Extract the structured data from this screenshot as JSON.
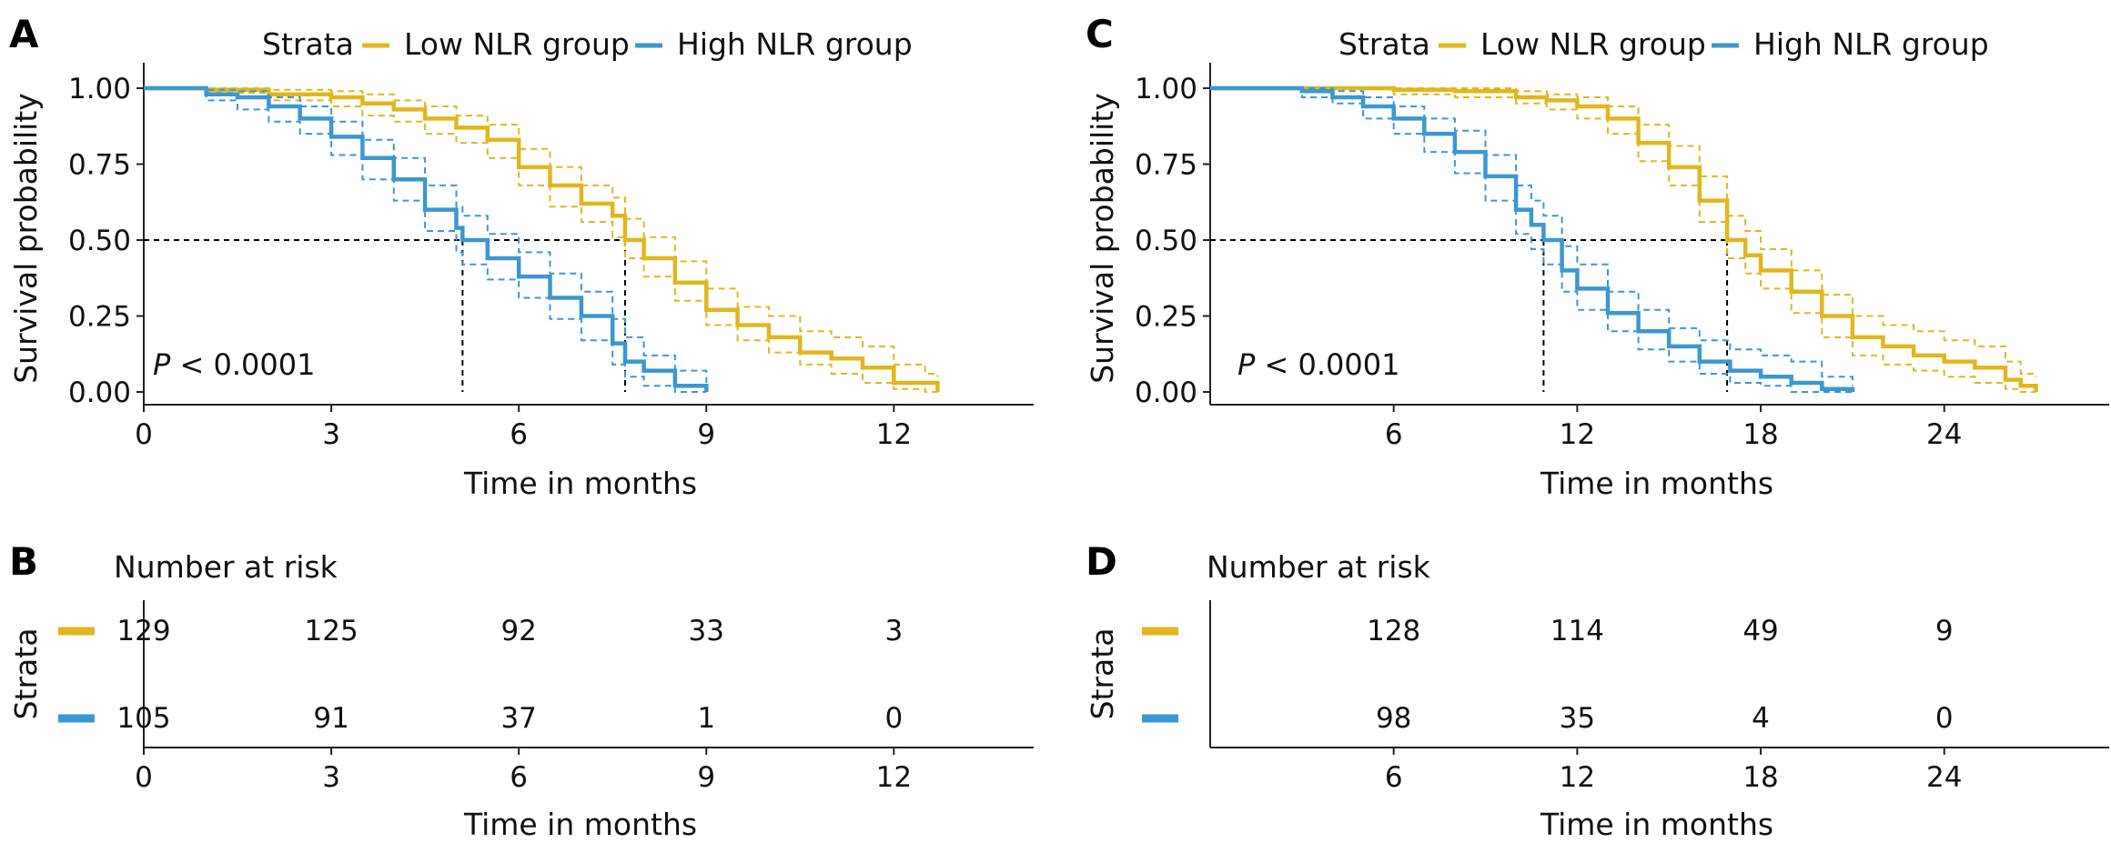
{
  "colors": {
    "low": "#E1B61D",
    "high": "#3B97CF",
    "axis": "#222222",
    "ref": "#000000"
  },
  "legend": {
    "title": "Strata",
    "low_label": "Low NLR group",
    "high_label": "High NLR group"
  },
  "panels": {
    "A": {
      "letter": "A",
      "p_italic": "P",
      "p_rest": " < 0.0001",
      "ylabel": "Survival probability",
      "xlabel": "Time in months"
    },
    "B": {
      "letter": "B",
      "title": "Number at risk",
      "ylabel": "Strata",
      "xlabel": "Time in months"
    },
    "C": {
      "letter": "C",
      "p_italic": "P",
      "p_rest": " < 0.0001",
      "ylabel": "Survival probability",
      "xlabel": "Time in months"
    },
    "D": {
      "letter": "D",
      "title": "Number at risk",
      "ylabel": "Strata",
      "xlabel": "Time in months"
    }
  },
  "chart_data": [
    {
      "panel": "A",
      "type": "line",
      "title": "",
      "xlabel": "Time in months",
      "ylabel": "Survival probability",
      "xlim": [
        0,
        13.8
      ],
      "ylim": [
        0,
        1.0
      ],
      "xticks": [
        0,
        3,
        6,
        9,
        12
      ],
      "yticks": [
        0.0,
        0.25,
        0.5,
        0.75,
        1.0
      ],
      "ytick_labels": [
        "0.00",
        "0.25",
        "0.50",
        "0.75",
        "1.00"
      ],
      "grid": false,
      "legend_position": "top",
      "median_survival": {
        "High NLR group": 5.1,
        "Low NLR group": 7.7
      },
      "series": [
        {
          "name": "Low NLR group",
          "x": [
            0,
            1.0,
            2.0,
            3.0,
            3.5,
            4.0,
            4.5,
            5.0,
            5.5,
            6.0,
            6.5,
            7.0,
            7.5,
            7.7,
            8.0,
            8.5,
            9.0,
            9.5,
            10.0,
            10.5,
            11.0,
            11.5,
            12.0,
            12.5,
            12.7
          ],
          "y": [
            1.0,
            0.995,
            0.98,
            0.97,
            0.95,
            0.93,
            0.9,
            0.87,
            0.83,
            0.74,
            0.68,
            0.62,
            0.58,
            0.5,
            0.44,
            0.36,
            0.27,
            0.22,
            0.18,
            0.13,
            0.11,
            0.08,
            0.03,
            0.03,
            0.0
          ],
          "ci_upper": [
            1.0,
            1.0,
            0.995,
            0.99,
            0.98,
            0.96,
            0.94,
            0.91,
            0.88,
            0.8,
            0.74,
            0.68,
            0.64,
            0.57,
            0.51,
            0.43,
            0.34,
            0.28,
            0.25,
            0.2,
            0.18,
            0.15,
            0.09,
            0.06,
            0.05
          ],
          "ci_lower": [
            1.0,
            0.985,
            0.96,
            0.94,
            0.91,
            0.89,
            0.85,
            0.82,
            0.77,
            0.68,
            0.61,
            0.56,
            0.51,
            0.44,
            0.38,
            0.3,
            0.22,
            0.17,
            0.13,
            0.09,
            0.06,
            0.03,
            0.01,
            0.0,
            0.0
          ]
        },
        {
          "name": "High NLR group",
          "x": [
            0,
            1.0,
            1.5,
            2.0,
            2.5,
            3.0,
            3.5,
            4.0,
            4.5,
            5.0,
            5.1,
            5.5,
            6.0,
            6.5,
            7.0,
            7.5,
            7.7,
            8.0,
            8.5,
            9.0
          ],
          "y": [
            1.0,
            0.98,
            0.97,
            0.94,
            0.9,
            0.84,
            0.77,
            0.7,
            0.6,
            0.54,
            0.5,
            0.44,
            0.38,
            0.31,
            0.25,
            0.16,
            0.1,
            0.07,
            0.02,
            0.0
          ],
          "ci_upper": [
            1.0,
            0.995,
            0.99,
            0.97,
            0.94,
            0.89,
            0.83,
            0.77,
            0.68,
            0.61,
            0.58,
            0.52,
            0.46,
            0.39,
            0.33,
            0.24,
            0.18,
            0.12,
            0.07,
            0.03
          ],
          "ci_lower": [
            1.0,
            0.96,
            0.93,
            0.89,
            0.85,
            0.78,
            0.7,
            0.63,
            0.53,
            0.46,
            0.42,
            0.37,
            0.31,
            0.24,
            0.17,
            0.09,
            0.05,
            0.02,
            0.0,
            0.0
          ]
        }
      ]
    },
    {
      "panel": "B",
      "type": "table",
      "title": "Number at risk",
      "xlabel": "Time in months",
      "ylabel": "Strata",
      "xlim": [
        0,
        13.8
      ],
      "x": [
        0,
        3,
        6,
        9,
        12
      ],
      "series": [
        {
          "name": "Low NLR group",
          "values": [
            129,
            125,
            92,
            33,
            3
          ]
        },
        {
          "name": "High NLR group",
          "values": [
            105,
            91,
            37,
            1,
            0
          ]
        }
      ]
    },
    {
      "panel": "C",
      "type": "line",
      "title": "",
      "xlabel": "Time in months",
      "ylabel": "Survival probability",
      "xlim": [
        0,
        28.5
      ],
      "ylim": [
        0,
        1.0
      ],
      "xticks": [
        6,
        12,
        18,
        24
      ],
      "yticks": [
        0.0,
        0.25,
        0.5,
        0.75,
        1.0
      ],
      "ytick_labels": [
        "0.00",
        "0.25",
        "0.50",
        "0.75",
        "1.00"
      ],
      "grid": false,
      "legend_position": "top",
      "median_survival": {
        "High NLR group": 10.9,
        "Low NLR group": 16.9
      },
      "series": [
        {
          "name": "Low NLR group",
          "x": [
            0,
            4.0,
            6.0,
            8.0,
            10.0,
            11.0,
            12.0,
            13.0,
            14.0,
            15.0,
            16.0,
            16.9,
            17.5,
            18.0,
            19.0,
            20.0,
            21.0,
            22.0,
            23.0,
            24.0,
            25.0,
            26.0,
            26.5,
            27.0
          ],
          "y": [
            1.0,
            1.0,
            0.995,
            0.99,
            0.97,
            0.96,
            0.94,
            0.9,
            0.82,
            0.74,
            0.63,
            0.5,
            0.45,
            0.4,
            0.33,
            0.25,
            0.18,
            0.15,
            0.12,
            0.1,
            0.08,
            0.04,
            0.02,
            0.0
          ],
          "ci_upper": [
            1.0,
            1.0,
            1.0,
            1.0,
            0.99,
            0.98,
            0.97,
            0.94,
            0.88,
            0.81,
            0.71,
            0.58,
            0.53,
            0.47,
            0.4,
            0.32,
            0.25,
            0.22,
            0.2,
            0.17,
            0.15,
            0.1,
            0.06,
            0.05
          ],
          "ci_lower": [
            1.0,
            1.0,
            0.98,
            0.97,
            0.95,
            0.93,
            0.9,
            0.85,
            0.76,
            0.68,
            0.56,
            0.44,
            0.39,
            0.34,
            0.26,
            0.18,
            0.12,
            0.09,
            0.07,
            0.05,
            0.03,
            0.01,
            0.0,
            0.0
          ]
        },
        {
          "name": "High NLR group",
          "x": [
            0,
            3.0,
            4.0,
            5.0,
            6.0,
            7.0,
            8.0,
            9.0,
            10.0,
            10.5,
            10.9,
            11.5,
            12.0,
            13.0,
            14.0,
            15.0,
            16.0,
            17.0,
            18.0,
            19.0,
            20.0,
            21.0
          ],
          "y": [
            1.0,
            0.99,
            0.97,
            0.94,
            0.9,
            0.85,
            0.79,
            0.71,
            0.6,
            0.55,
            0.5,
            0.4,
            0.34,
            0.26,
            0.2,
            0.15,
            0.1,
            0.07,
            0.05,
            0.03,
            0.01,
            0.0
          ],
          "ci_upper": [
            1.0,
            1.0,
            0.99,
            0.97,
            0.94,
            0.9,
            0.86,
            0.78,
            0.68,
            0.63,
            0.58,
            0.48,
            0.42,
            0.33,
            0.27,
            0.21,
            0.17,
            0.14,
            0.12,
            0.1,
            0.05,
            0.02
          ],
          "ci_lower": [
            1.0,
            0.97,
            0.95,
            0.9,
            0.85,
            0.79,
            0.72,
            0.63,
            0.52,
            0.47,
            0.42,
            0.33,
            0.27,
            0.2,
            0.14,
            0.1,
            0.06,
            0.03,
            0.02,
            0.0,
            0.0,
            0.0
          ]
        }
      ]
    },
    {
      "panel": "D",
      "type": "table",
      "title": "Number at risk",
      "xlabel": "Time in months",
      "ylabel": "Strata",
      "xlim": [
        0,
        28.5
      ],
      "x": [
        6,
        12,
        18,
        24
      ],
      "series": [
        {
          "name": "Low NLR group",
          "values": [
            128,
            114,
            49,
            9
          ]
        },
        {
          "name": "High NLR group",
          "values": [
            98,
            35,
            4,
            0
          ]
        }
      ]
    }
  ]
}
